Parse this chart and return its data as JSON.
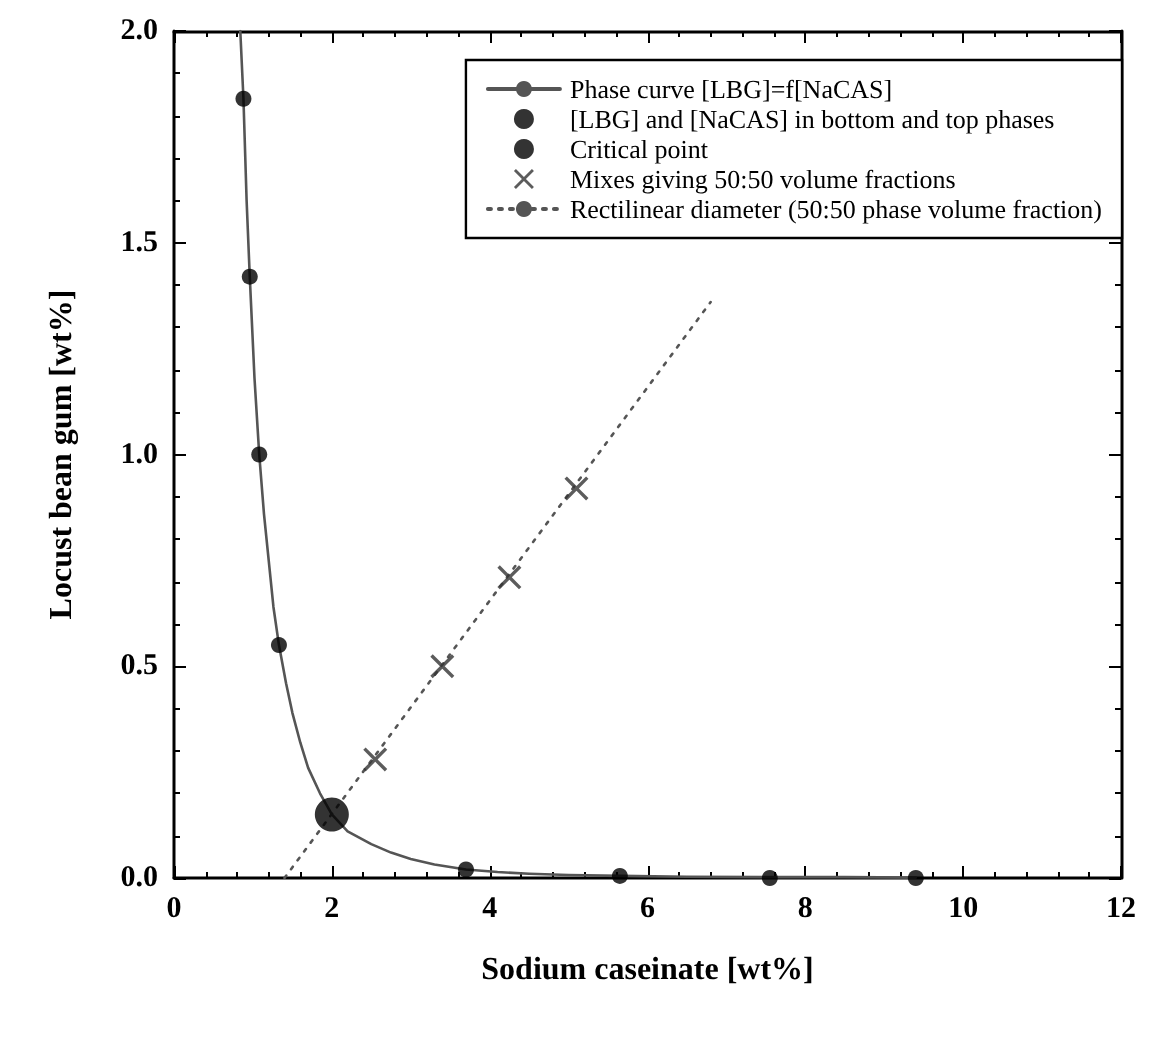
{
  "chart_data": {
    "type": "scatter",
    "xlabel": "Sodium caseinate [wt%]",
    "ylabel": "Locust bean gum [wt%]",
    "xlim": [
      0,
      12
    ],
    "xticks": [
      0,
      2,
      4,
      6,
      8,
      10,
      12
    ],
    "ylim": [
      0,
      2
    ],
    "yticks": [
      {
        "value": 0,
        "label": "0.0"
      },
      0.5,
      {
        "value": 1,
        "label": "1.0"
      },
      1.5,
      {
        "value": 2,
        "label": "2.0"
      }
    ],
    "grid": false,
    "legend": "top right",
    "series": [
      {
        "name": "Phase curve [LBG]=f[NaCAS]",
        "type": "line",
        "marker": "none",
        "line_style": "solid",
        "color": "#555555",
        "x": [
          0.84,
          0.88,
          0.92,
          0.96,
          1.02,
          1.08,
          1.14,
          1.2,
          1.26,
          1.33,
          1.42,
          1.5,
          1.6,
          1.7,
          1.85,
          2.0,
          2.2,
          2.5,
          2.75,
          3.0,
          3.3,
          3.7,
          4.1,
          4.5,
          5.0,
          5.65,
          6.5,
          7.5,
          8.5,
          9.4
        ],
        "values": [
          2.0,
          1.84,
          1.6,
          1.42,
          1.18,
          1.0,
          0.86,
          0.75,
          0.64,
          0.55,
          0.46,
          0.39,
          0.32,
          0.26,
          0.2,
          0.15,
          0.11,
          0.08,
          0.06,
          0.045,
          0.032,
          0.02,
          0.014,
          0.01,
          0.007,
          0.005,
          0.003,
          0.002,
          0.002,
          0.001
        ]
      },
      {
        "name": "[LBG] and [NaCAS] in bottom and top phases",
        "marker": "circle",
        "color": "#000000",
        "x": [
          0.88,
          0.96,
          1.08,
          1.33,
          3.7,
          5.65,
          7.55,
          9.4
        ],
        "values": [
          1.84,
          1.42,
          1.0,
          0.55,
          0.02,
          0.005,
          0.0,
          0.0
        ]
      },
      {
        "name": "Critical point",
        "marker": "circle",
        "color": "#000000",
        "x": [
          2.0
        ],
        "values": [
          0.15
        ]
      },
      {
        "name": "Mixes giving 50:50 volume fractions",
        "marker": "cross",
        "color": "#333333",
        "x": [
          2.55,
          3.4,
          4.25,
          5.1
        ],
        "values": [
          0.28,
          0.5,
          0.71,
          0.92
        ]
      },
      {
        "name": "Rectilinear diameter (50:50 phase volume fraction)",
        "type": "line",
        "marker": "none",
        "line_style": "dotted",
        "color": "#555555",
        "x": [
          1.4,
          6.8
        ],
        "values": [
          0.0,
          1.36
        ]
      }
    ]
  }
}
